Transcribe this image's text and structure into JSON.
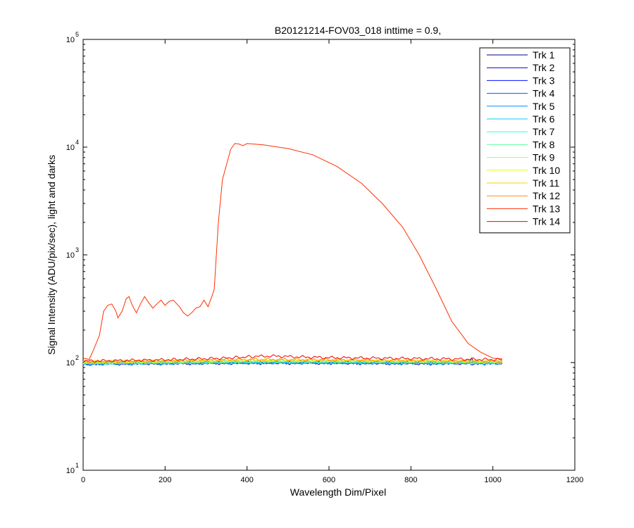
{
  "chart_data": {
    "type": "line",
    "title": "B20121214-FOV03_018 inttime = 0.9,",
    "xlabel": "Wavelength Dim/Pixel",
    "ylabel": "Signal Intensity (ADU/pix/sec), light and darks",
    "xlim": [
      0,
      1200
    ],
    "ylim": [
      10,
      100000
    ],
    "yscale": "log",
    "x_ticks": [
      0,
      200,
      400,
      600,
      800,
      1000,
      1200
    ],
    "y_ticks": [
      {
        "value": 10,
        "base": "10",
        "exp": "1"
      },
      {
        "value": 100,
        "base": "10",
        "exp": "2"
      },
      {
        "value": 1000,
        "base": "10",
        "exp": "3"
      },
      {
        "value": 10000,
        "base": "10",
        "exp": "4"
      },
      {
        "value": 100000,
        "base": "10",
        "exp": "5"
      }
    ],
    "grid": false,
    "legend_position": "top-right",
    "series": [
      {
        "name": "Trk 1",
        "color": "#00008f",
        "points": [
          [
            0,
            98
          ],
          [
            200,
            99
          ],
          [
            400,
            100
          ],
          [
            600,
            100
          ],
          [
            800,
            99
          ],
          [
            940,
            100
          ],
          [
            948,
            110
          ],
          [
            956,
            100
          ],
          [
            1023,
            99
          ]
        ]
      },
      {
        "name": "Trk 2",
        "color": "#0000bf",
        "points": [
          [
            0,
            97
          ],
          [
            200,
            98
          ],
          [
            400,
            99
          ],
          [
            600,
            99
          ],
          [
            800,
            98
          ],
          [
            1023,
            98
          ]
        ]
      },
      {
        "name": "Trk 3",
        "color": "#0010ff",
        "points": [
          [
            0,
            99
          ],
          [
            200,
            100
          ],
          [
            400,
            101
          ],
          [
            600,
            101
          ],
          [
            800,
            100
          ],
          [
            1023,
            100
          ]
        ]
      },
      {
        "name": "Trk 4",
        "color": "#0050ff",
        "points": [
          [
            0,
            98
          ],
          [
            200,
            99
          ],
          [
            400,
            100
          ],
          [
            600,
            100
          ],
          [
            800,
            99
          ],
          [
            1023,
            99
          ]
        ]
      },
      {
        "name": "Trk 5",
        "color": "#0090ff",
        "points": [
          [
            0,
            99
          ],
          [
            200,
            100
          ],
          [
            400,
            101
          ],
          [
            600,
            101
          ],
          [
            800,
            100
          ],
          [
            1023,
            100
          ]
        ]
      },
      {
        "name": "Trk 6",
        "color": "#00d0ff",
        "points": [
          [
            0,
            98
          ],
          [
            200,
            99
          ],
          [
            400,
            100
          ],
          [
            600,
            100
          ],
          [
            800,
            99
          ],
          [
            1023,
            99
          ]
        ]
      },
      {
        "name": "Trk 7",
        "color": "#20ffdf",
        "points": [
          [
            0,
            99
          ],
          [
            200,
            100
          ],
          [
            400,
            101
          ],
          [
            600,
            101
          ],
          [
            800,
            100
          ],
          [
            1023,
            100
          ]
        ]
      },
      {
        "name": "Trk 8",
        "color": "#60ff9f",
        "points": [
          [
            0,
            99
          ],
          [
            200,
            100
          ],
          [
            400,
            102
          ],
          [
            600,
            102
          ],
          [
            800,
            101
          ],
          [
            1023,
            100
          ]
        ]
      },
      {
        "name": "Trk 9",
        "color": "#9fff60",
        "points": [
          [
            0,
            100
          ],
          [
            200,
            101
          ],
          [
            400,
            103
          ],
          [
            600,
            103
          ],
          [
            800,
            102
          ],
          [
            1023,
            101
          ]
        ]
      },
      {
        "name": "Trk 10",
        "color": "#dfff20",
        "points": [
          [
            0,
            100
          ],
          [
            200,
            102
          ],
          [
            400,
            104
          ],
          [
            600,
            104
          ],
          [
            800,
            103
          ],
          [
            1023,
            102
          ]
        ]
      },
      {
        "name": "Trk 11",
        "color": "#ffd000",
        "points": [
          [
            0,
            101
          ],
          [
            200,
            103
          ],
          [
            400,
            105
          ],
          [
            600,
            105
          ],
          [
            800,
            104
          ],
          [
            1023,
            102
          ]
        ]
      },
      {
        "name": "Trk 12",
        "color": "#ff9000",
        "points": [
          [
            0,
            102
          ],
          [
            200,
            104
          ],
          [
            400,
            107
          ],
          [
            600,
            106
          ],
          [
            800,
            104
          ],
          [
            1023,
            103
          ]
        ]
      },
      {
        "name": "Trk 13",
        "color": "#ff3000",
        "points": [
          [
            0,
            110
          ],
          [
            15,
            107
          ],
          [
            25,
            130
          ],
          [
            40,
            180
          ],
          [
            50,
            300
          ],
          [
            60,
            340
          ],
          [
            70,
            350
          ],
          [
            80,
            300
          ],
          [
            85,
            260
          ],
          [
            95,
            300
          ],
          [
            105,
            390
          ],
          [
            112,
            410
          ],
          [
            120,
            340
          ],
          [
            130,
            290
          ],
          [
            140,
            350
          ],
          [
            150,
            410
          ],
          [
            160,
            360
          ],
          [
            170,
            320
          ],
          [
            180,
            350
          ],
          [
            190,
            380
          ],
          [
            200,
            340
          ],
          [
            210,
            370
          ],
          [
            220,
            380
          ],
          [
            235,
            330
          ],
          [
            245,
            290
          ],
          [
            255,
            270
          ],
          [
            265,
            290
          ],
          [
            275,
            320
          ],
          [
            285,
            330
          ],
          [
            295,
            380
          ],
          [
            305,
            330
          ],
          [
            315,
            420
          ],
          [
            320,
            480
          ],
          [
            330,
            2000
          ],
          [
            340,
            5000
          ],
          [
            360,
            9500
          ],
          [
            370,
            10800
          ],
          [
            380,
            10700
          ],
          [
            390,
            10300
          ],
          [
            400,
            10800
          ],
          [
            440,
            10500
          ],
          [
            500,
            9700
          ],
          [
            560,
            8500
          ],
          [
            620,
            6600
          ],
          [
            680,
            4600
          ],
          [
            730,
            3000
          ],
          [
            780,
            1800
          ],
          [
            820,
            1000
          ],
          [
            860,
            500
          ],
          [
            900,
            240
          ],
          [
            940,
            150
          ],
          [
            970,
            125
          ],
          [
            1000,
            110
          ],
          [
            1023,
            108
          ]
        ]
      },
      {
        "name": "Trk 14",
        "color": "#ef0000",
        "points": [
          [
            0,
            103
          ],
          [
            200,
            106
          ],
          [
            350,
            110
          ],
          [
            420,
            114
          ],
          [
            460,
            115
          ],
          [
            520,
            113
          ],
          [
            600,
            111
          ],
          [
            700,
            110
          ],
          [
            800,
            109
          ],
          [
            900,
            108
          ],
          [
            1023,
            106
          ]
        ]
      }
    ]
  }
}
